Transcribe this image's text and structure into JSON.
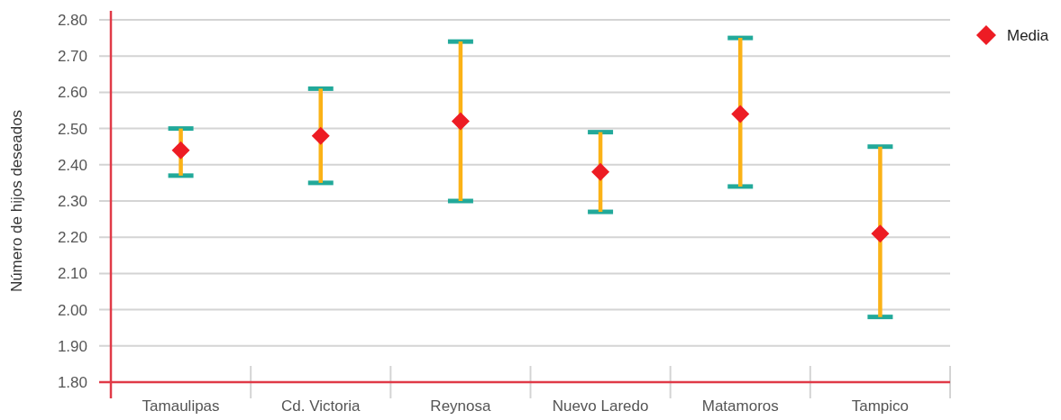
{
  "chart_data": {
    "type": "scatter",
    "ylabel": "Número de hijos deseados",
    "categories": [
      "Tamaulipas",
      "Cd. Victoria",
      "Reynosa",
      "Nuevo Laredo",
      "Matamoros",
      "Tampico"
    ],
    "series": [
      {
        "name": "Media",
        "color": "#ed1c24",
        "values": [
          2.44,
          2.48,
          2.52,
          2.38,
          2.54,
          2.21
        ],
        "errors": [
          [
            2.37,
            2.5
          ],
          [
            2.35,
            2.61
          ],
          [
            2.3,
            2.74
          ],
          [
            2.27,
            2.49
          ],
          [
            2.34,
            2.75
          ],
          [
            1.98,
            2.45
          ]
        ]
      }
    ],
    "ylim": [
      1.8,
      2.8
    ],
    "yticks": [
      {
        "value": 1.8,
        "label": "1.80"
      },
      {
        "value": 1.9,
        "label": "1.90"
      },
      {
        "value": 2.0,
        "label": "2.00"
      },
      {
        "value": 2.1,
        "label": "2.10"
      },
      {
        "value": 2.2,
        "label": "2.20"
      },
      {
        "value": 2.3,
        "label": "2.30"
      },
      {
        "value": 2.4,
        "label": "2.40"
      },
      {
        "value": 2.5,
        "label": "2.50"
      },
      {
        "value": 2.6,
        "label": "2.60"
      },
      {
        "value": 2.7,
        "label": "2.70"
      },
      {
        "value": 2.8,
        "label": "2.80"
      }
    ],
    "grid": "y",
    "legend": "top right",
    "marker": "diamond"
  }
}
